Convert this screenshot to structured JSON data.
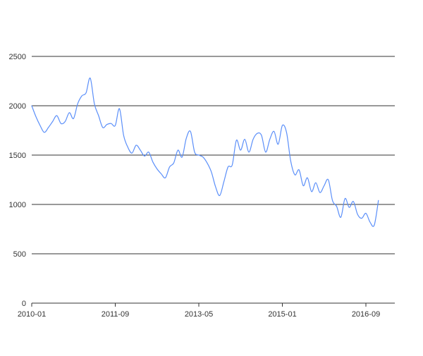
{
  "chart_data": {
    "type": "line",
    "title": "",
    "xlabel": "",
    "ylabel": "",
    "ylim": [
      0,
      2500
    ],
    "yticks": [
      0,
      500,
      1000,
      1500,
      2000,
      2500
    ],
    "xlim": [
      "2010-01",
      "2016-12"
    ],
    "xticks": [
      "2010-01",
      "2011-09",
      "2013-05",
      "2015-01",
      "2016-09"
    ],
    "grid": true,
    "legend": "none",
    "series": [
      {
        "color": "#5b8ff9",
        "points": [
          [
            "2010-01",
            2000
          ],
          [
            "2010-02",
            1890
          ],
          [
            "2010-03",
            1800
          ],
          [
            "2010-04",
            1730
          ],
          [
            "2010-05",
            1780
          ],
          [
            "2010-06",
            1840
          ],
          [
            "2010-07",
            1900
          ],
          [
            "2010-08",
            1820
          ],
          [
            "2010-09",
            1840
          ],
          [
            "2010-10",
            1930
          ],
          [
            "2010-11",
            1870
          ],
          [
            "2010-12",
            2020
          ],
          [
            "2011-01",
            2100
          ],
          [
            "2011-02",
            2130
          ],
          [
            "2011-03",
            2280
          ],
          [
            "2011-04",
            2020
          ],
          [
            "2011-05",
            1900
          ],
          [
            "2011-06",
            1780
          ],
          [
            "2011-07",
            1810
          ],
          [
            "2011-08",
            1820
          ],
          [
            "2011-09",
            1800
          ],
          [
            "2011-10",
            1970
          ],
          [
            "2011-11",
            1700
          ],
          [
            "2011-12",
            1580
          ],
          [
            "2012-01",
            1520
          ],
          [
            "2012-02",
            1600
          ],
          [
            "2012-03",
            1550
          ],
          [
            "2012-04",
            1490
          ],
          [
            "2012-05",
            1530
          ],
          [
            "2012-06",
            1430
          ],
          [
            "2012-07",
            1360
          ],
          [
            "2012-08",
            1310
          ],
          [
            "2012-09",
            1270
          ],
          [
            "2012-10",
            1380
          ],
          [
            "2012-11",
            1420
          ],
          [
            "2012-12",
            1550
          ],
          [
            "2013-01",
            1480
          ],
          [
            "2013-02",
            1670
          ],
          [
            "2013-03",
            1740
          ],
          [
            "2013-04",
            1530
          ],
          [
            "2013-05",
            1500
          ],
          [
            "2013-06",
            1480
          ],
          [
            "2013-07",
            1420
          ],
          [
            "2013-08",
            1330
          ],
          [
            "2013-09",
            1180
          ],
          [
            "2013-10",
            1090
          ],
          [
            "2013-11",
            1230
          ],
          [
            "2013-12",
            1380
          ],
          [
            "2014-01",
            1400
          ],
          [
            "2014-02",
            1650
          ],
          [
            "2014-03",
            1550
          ],
          [
            "2014-04",
            1660
          ],
          [
            "2014-05",
            1530
          ],
          [
            "2014-06",
            1660
          ],
          [
            "2014-07",
            1720
          ],
          [
            "2014-08",
            1700
          ],
          [
            "2014-09",
            1530
          ],
          [
            "2014-10",
            1660
          ],
          [
            "2014-11",
            1740
          ],
          [
            "2014-12",
            1610
          ],
          [
            "2015-01",
            1800
          ],
          [
            "2015-02",
            1730
          ],
          [
            "2015-03",
            1440
          ],
          [
            "2015-04",
            1300
          ],
          [
            "2015-05",
            1350
          ],
          [
            "2015-06",
            1190
          ],
          [
            "2015-07",
            1270
          ],
          [
            "2015-08",
            1130
          ],
          [
            "2015-09",
            1220
          ],
          [
            "2015-10",
            1120
          ],
          [
            "2015-11",
            1190
          ],
          [
            "2015-12",
            1250
          ],
          [
            "2016-01",
            1040
          ],
          [
            "2016-02",
            980
          ],
          [
            "2016-03",
            870
          ],
          [
            "2016-04",
            1060
          ],
          [
            "2016-05",
            970
          ],
          [
            "2016-06",
            1030
          ],
          [
            "2016-07",
            900
          ],
          [
            "2016-08",
            860
          ],
          [
            "2016-09",
            910
          ],
          [
            "2016-10",
            820
          ],
          [
            "2016-11",
            790
          ],
          [
            "2016-12",
            1040
          ]
        ]
      }
    ]
  }
}
